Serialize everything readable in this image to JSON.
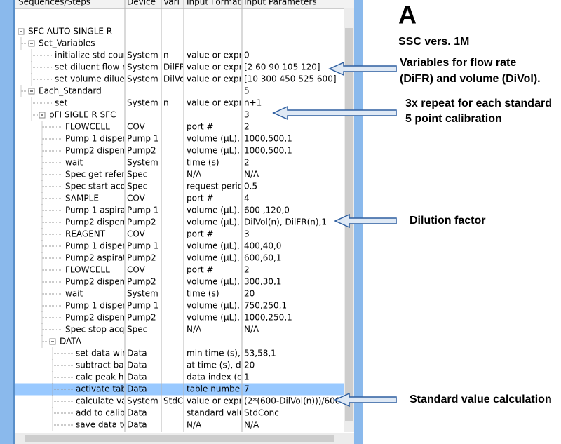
{
  "header": {
    "columns": [
      "Sequences/Steps",
      "Device",
      "Vari",
      "Input Format",
      "Input Parameters"
    ]
  },
  "table": {
    "rows": [
      {
        "label": "SFC AUTO SINGLE R"
      },
      {
        "label": "Set_Variables"
      },
      {
        "label": "initialize std coun",
        "device": "System",
        "var": "n",
        "format": "value or expre",
        "params": "0"
      },
      {
        "label": "set diluent flow ra",
        "device": "System",
        "var": "DilFR",
        "format": "value or expre",
        "params": "[2 60 90 105 120]"
      },
      {
        "label": "set volume diluen",
        "device": "System",
        "var": "DilVo",
        "format": "value or expre",
        "params": "[10 300 450 525 600]"
      },
      {
        "label": "Each_Standard",
        "params": "5"
      },
      {
        "label": "set",
        "device": "System",
        "var": "n",
        "format": "value or expre",
        "params": "n+1"
      },
      {
        "label": "pFI SIGLE R SFC",
        "params": "3"
      },
      {
        "label": "FLOWCELL",
        "device": "COV",
        "format": "port #",
        "params": "2"
      },
      {
        "label": "Pump 1 dispens",
        "device": "Pump 1",
        "format": "volume (µL), fl",
        "params": "1000,500,1"
      },
      {
        "label": "Pump2 dispens",
        "device": "Pump2",
        "format": "volume (µL), fl",
        "params": "1000,500,1"
      },
      {
        "label": "wait",
        "device": "System",
        "format": "time (s)",
        "params": "2"
      },
      {
        "label": "Spec get refere",
        "device": "Spec",
        "format": "N/A",
        "params": "N/A"
      },
      {
        "label": "Spec start acqu",
        "device": "Spec",
        "format": "request period",
        "params": "0.5"
      },
      {
        "label": "SAMPLE",
        "device": "COV",
        "format": "port #",
        "params": "4"
      },
      {
        "label": "Pump 1 aspirat",
        "device": "Pump 1",
        "format": "volume (µL), fl",
        "params": "600 ,120,0"
      },
      {
        "label": "Pump2 dispens",
        "device": "Pump2",
        "format": "volume (µL), fl",
        "params": "DilVol(n), DilFR(n),1"
      },
      {
        "label": "REAGENT",
        "device": "COV",
        "format": "port #",
        "params": "3"
      },
      {
        "label": "Pump 1 dispens",
        "device": "Pump 1",
        "format": "volume (µL), fl",
        "params": "400,40,0"
      },
      {
        "label": "Pump2 aspirate",
        "device": "Pump2",
        "format": "volume (µL), fl",
        "params": "600,60,1"
      },
      {
        "label": "FLOWCELL",
        "device": "COV",
        "format": "port #",
        "params": "2"
      },
      {
        "label": "Pump2 dispens",
        "device": "Pump2",
        "format": "volume (µL), fl",
        "params": "300,30,1"
      },
      {
        "label": "wait",
        "device": "System",
        "format": "time (s)",
        "params": "20"
      },
      {
        "label": "Pump 1 dispens",
        "device": "Pump 1",
        "format": "volume (µL), fl",
        "params": "750,250,1"
      },
      {
        "label": "Pump2 dispens",
        "device": "Pump2",
        "format": "volume (µL), fl",
        "params": "1000,250,1"
      },
      {
        "label": "Spec stop acqu",
        "device": "Spec",
        "format": "N/A",
        "params": "N/A"
      },
      {
        "label": "DATA"
      },
      {
        "label": "set data wind",
        "device": "Data",
        "format": "min time (s), m",
        "params": "53,58,1"
      },
      {
        "label": "subtract base",
        "device": "Data",
        "format": "at time (s), dat",
        "params": "20"
      },
      {
        "label": "calc peak hei",
        "device": "Data",
        "format": "data index (op",
        "params": "1"
      },
      {
        "label": "activate table",
        "device": "Data",
        "format": "table number",
        "params": "7",
        "selected": true
      },
      {
        "label": "calculate valu",
        "device": "System",
        "var": "StdC",
        "format": "value or expre",
        "params": "(2*(600-DilVol(n)))/600"
      },
      {
        "label": "add to calib",
        "device": "Data",
        "format": "standard value",
        "params": "StdConc"
      },
      {
        "label": "save data to",
        "device": "Data",
        "format": "N/A",
        "params": "N/A"
      }
    ]
  },
  "annotations": {
    "letter": "A",
    "version": "SSC vers. 1M",
    "variables": [
      "Variables for flow rate",
      "(DiFR) and volume (DiVol)."
    ],
    "repeat": [
      "3x repeat for each standard",
      "5 point calibration"
    ],
    "dilution": "Dilution factor",
    "standard": "Standard value calculation"
  }
}
